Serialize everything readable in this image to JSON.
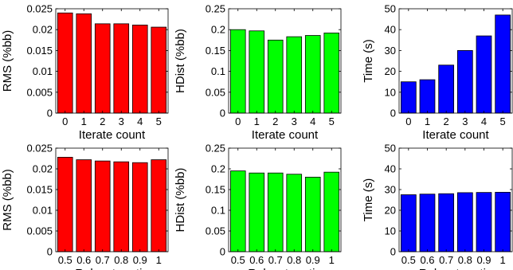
{
  "chart_data": [
    {
      "type": "bar",
      "categories": [
        "0",
        "1",
        "2",
        "3",
        "4",
        "5"
      ],
      "values": [
        0.024,
        0.0238,
        0.0214,
        0.0214,
        0.0211,
        0.0206
      ],
      "xlabel": "Iterate count",
      "ylabel": "RMS (%bb)",
      "ylim": [
        0,
        0.025
      ],
      "yticks": [
        "0",
        "0.005",
        "0.01",
        "0.015",
        "0.02",
        "0.025"
      ],
      "color": "#ff0000",
      "grid": false
    },
    {
      "type": "bar",
      "categories": [
        "0",
        "1",
        "2",
        "3",
        "4",
        "5"
      ],
      "values": [
        0.2,
        0.197,
        0.175,
        0.183,
        0.186,
        0.192
      ],
      "xlabel": "Iterate count",
      "ylabel": "HDist (%bb)",
      "ylim": [
        0,
        0.25
      ],
      "yticks": [
        "0",
        "0.05",
        "0.1",
        "0.15",
        "0.2",
        "0.25"
      ],
      "color": "#00ff00",
      "grid": false
    },
    {
      "type": "bar",
      "categories": [
        "0",
        "1",
        "2",
        "3",
        "4",
        "5"
      ],
      "values": [
        15.0,
        16.0,
        23.0,
        30.0,
        37.0,
        47.0
      ],
      "xlabel": "Iterate count",
      "ylabel": "Time (s)",
      "ylim": [
        0,
        50
      ],
      "yticks": [
        "0",
        "10",
        "20",
        "30",
        "40",
        "50"
      ],
      "color": "#0000ff",
      "grid": false
    },
    {
      "type": "bar",
      "categories": [
        "0.5",
        "0.6",
        "0.7",
        "0.8",
        "0.9",
        "1"
      ],
      "values": [
        0.0228,
        0.0222,
        0.0219,
        0.0217,
        0.0215,
        0.0222
      ],
      "xlabel": "Relocate ratio",
      "ylabel": "RMS (%bb)",
      "ylim": [
        0,
        0.025
      ],
      "yticks": [
        "0",
        "0.005",
        "0.01",
        "0.015",
        "0.02",
        "0.025"
      ],
      "color": "#ff0000",
      "grid": false
    },
    {
      "type": "bar",
      "categories": [
        "0.5",
        "0.6",
        "0.7",
        "0.8",
        "0.9",
        "1"
      ],
      "values": [
        0.195,
        0.19,
        0.19,
        0.187,
        0.18,
        0.192
      ],
      "xlabel": "Relocate ratio",
      "ylabel": "HDist (%bb)",
      "ylim": [
        0,
        0.25
      ],
      "yticks": [
        "0",
        "0.05",
        "0.1",
        "0.15",
        "0.2",
        "0.25"
      ],
      "color": "#00ff00",
      "grid": false
    },
    {
      "type": "bar",
      "categories": [
        "0.5",
        "0.6",
        "0.7",
        "0.8",
        "0.9",
        "1"
      ],
      "values": [
        27.5,
        27.8,
        28.0,
        28.5,
        28.6,
        28.7
      ],
      "xlabel": "Relocate ratio",
      "ylabel": "Time (s)",
      "ylim": [
        0,
        50
      ],
      "yticks": [
        "0",
        "10",
        "20",
        "30",
        "40",
        "50"
      ],
      "color": "#0000ff",
      "grid": false
    }
  ]
}
